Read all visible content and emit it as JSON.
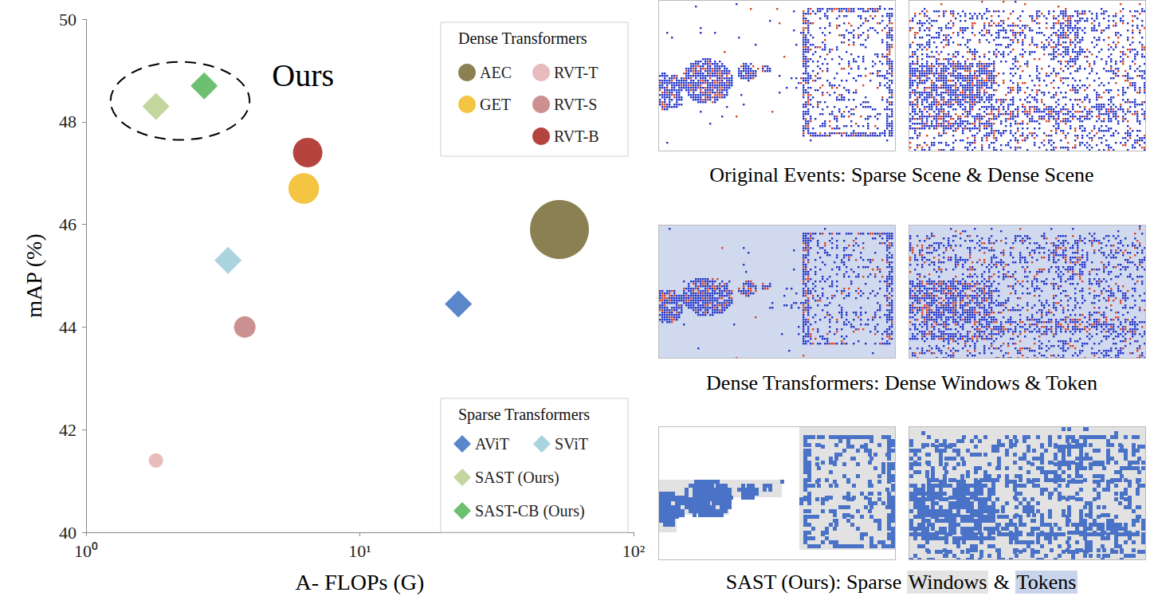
{
  "chart_data": {
    "type": "scatter",
    "x_label": "A- FLOPs (G)",
    "y_label": "mAP (%)",
    "log": "x",
    "grid": false,
    "xlim": [
      1,
      100
    ],
    "xticks": [
      {
        "value": 1,
        "label": "10⁰"
      },
      {
        "value": 10,
        "label": "10¹"
      },
      {
        "value": 100,
        "label": "10²"
      }
    ],
    "ylim": [
      40,
      50
    ],
    "yticks": [
      40,
      42,
      44,
      46,
      48,
      50
    ],
    "series": [
      {
        "name": "AEC",
        "color": "#8b8052",
        "marker": "circle",
        "x": [
          53.6
        ],
        "values": [
          45.9
        ],
        "size": [
          74
        ]
      },
      {
        "name": "GET",
        "color": "#f4c542",
        "marker": "circle",
        "x": [
          6.24
        ],
        "values": [
          46.7
        ],
        "size": [
          20
        ]
      },
      {
        "name": "RVT-T",
        "color": "#e8bcbc",
        "marker": "circle",
        "x": [
          1.8
        ],
        "values": [
          41.4
        ],
        "size": [
          4.4
        ]
      },
      {
        "name": "RVT-S",
        "color": "#cc9090",
        "marker": "circle",
        "x": [
          3.8
        ],
        "values": [
          44.0
        ],
        "size": [
          9.9
        ]
      },
      {
        "name": "RVT-B",
        "color": "#b5433e",
        "marker": "circle",
        "x": [
          6.45
        ],
        "values": [
          47.4
        ],
        "size": [
          18.5
        ]
      },
      {
        "name": "AViT",
        "color": "#5b86cc",
        "marker": "diamond",
        "x": [
          22.9
        ],
        "values": [
          44.45
        ]
      },
      {
        "name": "SViT",
        "color": "#a9d3df",
        "marker": "diamond",
        "x": [
          3.3
        ],
        "values": [
          45.3
        ]
      },
      {
        "name": "SAST (Ours)",
        "color": "#c3d69e",
        "marker": "diamond",
        "x": [
          1.8
        ],
        "values": [
          48.3
        ]
      },
      {
        "name": "SAST-CB (Ours)",
        "color": "#6cc070",
        "marker": "diamond",
        "x": [
          2.7
        ],
        "values": [
          48.7
        ]
      }
    ],
    "legend_groups": [
      {
        "title": "Dense Transformers",
        "columns": [
          [
            "AEC",
            "GET"
          ],
          [
            "RVT-T",
            "RVT-S",
            "RVT-B"
          ]
        ]
      },
      {
        "title": "Sparse Transformers",
        "rows": [
          [
            "AViT",
            "SViT"
          ],
          [
            "SAST (Ours)"
          ],
          [
            "SAST-CB (Ours)"
          ]
        ]
      }
    ],
    "annotations": [
      {
        "text": "Ours",
        "x": 6.2,
        "y": 48.9,
        "encloses": [
          "SAST (Ours)",
          "SAST-CB (Ours)"
        ]
      }
    ]
  },
  "panels": [
    {
      "style": "events",
      "caption": [
        {
          "text": "Original Events: Sparse Scene & Dense Scene"
        }
      ]
    },
    {
      "style": "dense",
      "caption": [
        {
          "text": "Dense Transformers: Dense Windows & Token"
        }
      ]
    },
    {
      "style": "sparse",
      "caption": [
        {
          "text": "SAST (Ours): Sparse "
        },
        {
          "text": "Windows",
          "highlight": "window"
        },
        {
          "text": " & "
        },
        {
          "text": "Tokens",
          "highlight": "token"
        }
      ]
    }
  ]
}
